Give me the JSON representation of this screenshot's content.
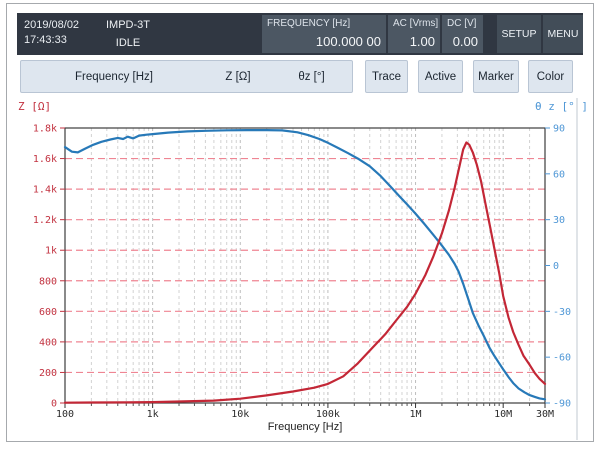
{
  "colors": {
    "header_bg": "#303742",
    "header_panel_bg": "#4c5763",
    "header_button_bg": "#424d58",
    "toolbar_bg": "#dee6ef",
    "z_red": "#c32736",
    "theta_blue": "#2779b8",
    "red_grid": "#ef8593",
    "gray_grid": "#d2d2d2"
  },
  "header": {
    "datetime": {
      "date": "2019/08/02",
      "time": "17:43:33"
    },
    "mode": "IMPD-3T",
    "status": "IDLE",
    "frequency": {
      "label": "FREQUENCY [Hz]",
      "value": "100.000 00"
    },
    "ac": {
      "label": "AC [Vrms]",
      "value": "1.00"
    },
    "dc": {
      "label": "DC [V]",
      "value": "0.00"
    },
    "setup_label": "SETUP",
    "menu_label": "MENU"
  },
  "toolbar": {
    "params": {
      "sweep": "Frequency [Hz]",
      "param1": "Z [Ω]",
      "param2": "θz [°]"
    },
    "buttons": [
      {
        "label": "Trace"
      },
      {
        "label": "Active"
      },
      {
        "label": "Marker"
      },
      {
        "label": "Color"
      }
    ]
  },
  "chart": {
    "corner_left": "Z [Ω]",
    "corner_right": "θ z [° ]"
  },
  "chart_data": {
    "type": "line",
    "title": "",
    "x_axis": {
      "label": "Frequency [Hz]",
      "scale": "log",
      "min": 100,
      "max": 30000000,
      "major_ticks": [
        100,
        1000,
        10000,
        100000,
        1000000,
        10000000,
        30000000
      ],
      "major_tick_labels": [
        "100",
        "1k",
        "10k",
        "100k",
        "1M",
        "10M",
        "30M"
      ]
    },
    "y_left": {
      "label": "Z [Ω]",
      "min": 0,
      "max": 1800,
      "tick_step": 200,
      "tick_values": [
        0,
        200,
        400,
        600,
        800,
        1000,
        1200,
        1400,
        1600,
        1800
      ],
      "tick_labels": [
        "0",
        "200",
        "400",
        "600",
        "800",
        "1k",
        "1.2k",
        "1.4k",
        "1.6k",
        "1.8k"
      ],
      "color": "#c23240"
    },
    "y_right": {
      "label": "θz [°]",
      "min": -90,
      "max": 90,
      "tick_step": 30,
      "tick_values": [
        90,
        60,
        30,
        0,
        -30,
        -60,
        -90
      ],
      "tick_labels": [
        "90",
        "60",
        "30",
        "0",
        "-30",
        "-60",
        "-90"
      ],
      "color": "#4f97d6"
    },
    "grid": {
      "vertical": "log-dashed-gray",
      "horizontal": "red-dashed-every-200"
    },
    "series": [
      {
        "name": "theta_z",
        "axis": "right",
        "color": "#2779b8",
        "points": [
          [
            100,
            77.5
          ],
          [
            120,
            74.5
          ],
          [
            140,
            74
          ],
          [
            170,
            76.5
          ],
          [
            210,
            79
          ],
          [
            260,
            81
          ],
          [
            330,
            82.5
          ],
          [
            400,
            83.5
          ],
          [
            460,
            82.8
          ],
          [
            520,
            84.3
          ],
          [
            600,
            83.2
          ],
          [
            700,
            85
          ],
          [
            850,
            85.6
          ],
          [
            1000,
            86
          ],
          [
            1500,
            87
          ],
          [
            2500,
            87.8
          ],
          [
            4000,
            88.2
          ],
          [
            7000,
            88.5
          ],
          [
            12000,
            88.6
          ],
          [
            20000,
            88.6
          ],
          [
            30000,
            88.4
          ],
          [
            45000,
            87.2
          ],
          [
            60000,
            85.3
          ],
          [
            80000,
            82.8
          ],
          [
            100000,
            80.3
          ],
          [
            130000,
            77
          ],
          [
            170000,
            73.5
          ],
          [
            220000,
            70
          ],
          [
            300000,
            65
          ],
          [
            400000,
            58.5
          ],
          [
            520000,
            51.5
          ],
          [
            650000,
            45.5
          ],
          [
            800000,
            40
          ],
          [
            1000000,
            34
          ],
          [
            1250000,
            27.5
          ],
          [
            1600000,
            20
          ],
          [
            2000000,
            13
          ],
          [
            2400000,
            7
          ],
          [
            2800000,
            1
          ],
          [
            3100000,
            -4
          ],
          [
            3500000,
            -12
          ],
          [
            4000000,
            -22
          ],
          [
            4500000,
            -31
          ],
          [
            5200000,
            -39
          ],
          [
            6000000,
            -46
          ],
          [
            7000000,
            -54
          ],
          [
            8000000,
            -59.5
          ],
          [
            9000000,
            -64
          ],
          [
            10000000,
            -68
          ],
          [
            11500000,
            -73
          ],
          [
            13000000,
            -77
          ],
          [
            15000000,
            -80.5
          ],
          [
            17500000,
            -83
          ],
          [
            20000000,
            -84.8
          ],
          [
            23000000,
            -86
          ],
          [
            26000000,
            -87
          ],
          [
            30000000,
            -87.6
          ]
        ]
      },
      {
        "name": "Z",
        "axis": "left",
        "color": "#c32736",
        "points": [
          [
            100,
            2
          ],
          [
            200,
            3
          ],
          [
            500,
            4
          ],
          [
            1000,
            6
          ],
          [
            2000,
            10
          ],
          [
            5000,
            16
          ],
          [
            10000,
            28
          ],
          [
            20000,
            50
          ],
          [
            40000,
            75
          ],
          [
            70000,
            100
          ],
          [
            100000,
            125
          ],
          [
            150000,
            175
          ],
          [
            220000,
            260
          ],
          [
            320000,
            360
          ],
          [
            450000,
            450
          ],
          [
            600000,
            540
          ],
          [
            800000,
            630
          ],
          [
            1000000,
            715
          ],
          [
            1300000,
            840
          ],
          [
            1600000,
            960
          ],
          [
            2000000,
            1110
          ],
          [
            2400000,
            1260
          ],
          [
            2800000,
            1410
          ],
          [
            3200000,
            1560
          ],
          [
            3500000,
            1660
          ],
          [
            3800000,
            1705
          ],
          [
            4100000,
            1690
          ],
          [
            4500000,
            1640
          ],
          [
            5000000,
            1560
          ],
          [
            5600000,
            1450
          ],
          [
            6300000,
            1300
          ],
          [
            7100000,
            1150
          ],
          [
            8000000,
            1000
          ],
          [
            9000000,
            850
          ],
          [
            10000000,
            700
          ],
          [
            11500000,
            560
          ],
          [
            13000000,
            465
          ],
          [
            15000000,
            380
          ],
          [
            17000000,
            310
          ],
          [
            20000000,
            250
          ],
          [
            23000000,
            195
          ],
          [
            26000000,
            158
          ],
          [
            30000000,
            125
          ]
        ]
      }
    ]
  }
}
